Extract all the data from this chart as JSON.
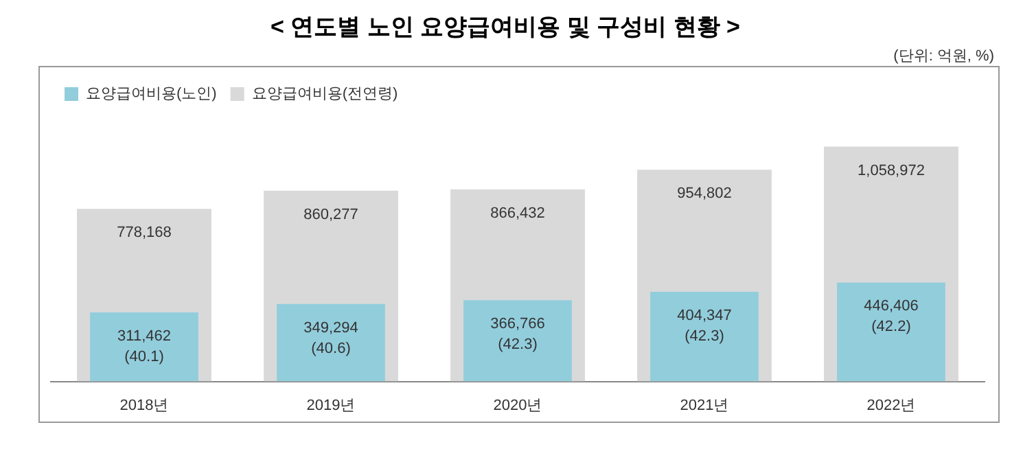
{
  "chart_data": {
    "type": "bar",
    "title": "< 연도별 노인 요양급여비용 및 구성비 현황 >",
    "annotations": [
      "(단위: 억원, %)"
    ],
    "categories": [
      "2018년",
      "2019년",
      "2020년",
      "2021년",
      "2022년"
    ],
    "legend": "top left",
    "series": [
      {
        "name": "요양급여비용(전연령)",
        "color": "#d9d9d9",
        "values": [
          778168,
          860277,
          866432,
          954802,
          1058972
        ],
        "value_labels": [
          "778,168",
          "860,277",
          "866,432",
          "954,802",
          "1,058,972"
        ]
      },
      {
        "name": "요양급여비용(노인)",
        "color": "#92cddc",
        "values": [
          311462,
          349294,
          366766,
          404347,
          446406
        ],
        "value_labels": [
          "311,462\n(40.1)",
          "349,294\n(40.6)",
          "366,766\n(42.3)",
          "404,347\n(42.3)",
          "446,406\n(42.2)"
        ]
      }
    ]
  }
}
